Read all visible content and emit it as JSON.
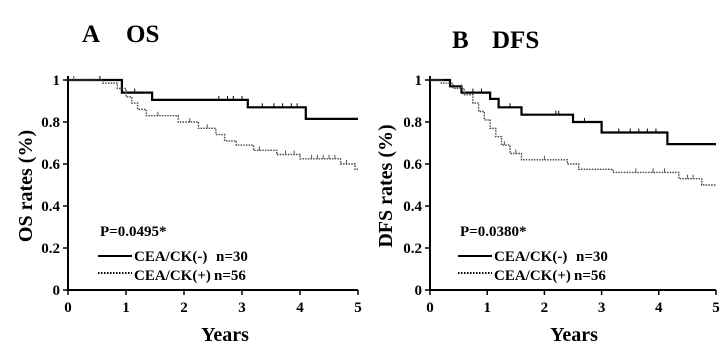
{
  "chart_data": [
    {
      "type": "line",
      "panel_label": "A",
      "title": "OS",
      "xlabel": "Years",
      "ylabel": "OS rates (%)",
      "xlim": [
        0,
        5
      ],
      "ylim": [
        0,
        1
      ],
      "x_ticks": [
        "0",
        "1",
        "2",
        "3",
        "4",
        "5"
      ],
      "y_ticks": [
        "0",
        "0.2",
        "0.4",
        "0.6",
        "0.8",
        "1"
      ],
      "annotation": "P=0.0495*",
      "legend_position": "bottom-left",
      "series": [
        {
          "name": "CEA/CK(-)",
          "n_label": "n=30",
          "style": "solid",
          "points": [
            [
              0,
              1.0
            ],
            [
              0.93,
              1.0
            ],
            [
              0.93,
              0.94
            ],
            [
              1.45,
              0.94
            ],
            [
              1.45,
              0.905
            ],
            [
              3.1,
              0.905
            ],
            [
              3.1,
              0.87
            ],
            [
              4.1,
              0.87
            ],
            [
              4.1,
              0.815
            ],
            [
              5,
              0.815
            ]
          ],
          "censor_x": [
            0.55,
            1.15,
            2.6,
            2.75,
            2.85,
            3.0,
            3.35,
            3.55,
            3.7,
            3.85,
            3.95
          ]
        },
        {
          "name": "CEA/CK(+)",
          "n_label": "n=56",
          "style": "dotted",
          "points": [
            [
              0,
              1.0
            ],
            [
              0.6,
              1.0
            ],
            [
              0.6,
              0.985
            ],
            [
              0.85,
              0.985
            ],
            [
              0.85,
              0.96
            ],
            [
              1.0,
              0.96
            ],
            [
              1.0,
              0.92
            ],
            [
              1.1,
              0.92
            ],
            [
              1.1,
              0.89
            ],
            [
              1.2,
              0.89
            ],
            [
              1.2,
              0.86
            ],
            [
              1.35,
              0.86
            ],
            [
              1.35,
              0.83
            ],
            [
              1.9,
              0.83
            ],
            [
              1.9,
              0.8
            ],
            [
              2.25,
              0.8
            ],
            [
              2.25,
              0.77
            ],
            [
              2.55,
              0.77
            ],
            [
              2.55,
              0.74
            ],
            [
              2.7,
              0.74
            ],
            [
              2.7,
              0.71
            ],
            [
              2.9,
              0.71
            ],
            [
              2.9,
              0.69
            ],
            [
              3.2,
              0.69
            ],
            [
              3.2,
              0.665
            ],
            [
              3.6,
              0.665
            ],
            [
              3.6,
              0.645
            ],
            [
              4.0,
              0.645
            ],
            [
              4.0,
              0.625
            ],
            [
              4.7,
              0.625
            ],
            [
              4.7,
              0.6
            ],
            [
              4.95,
              0.6
            ],
            [
              4.95,
              0.575
            ],
            [
              5,
              0.575
            ]
          ],
          "censor_x": [
            0.1,
            1.55,
            2.1,
            2.4,
            3.3,
            3.75,
            3.9,
            4.2,
            4.3,
            4.4,
            4.5,
            4.6,
            4.8
          ]
        }
      ]
    },
    {
      "type": "line",
      "panel_label": "B",
      "title": "DFS",
      "xlabel": "Years",
      "ylabel": "DFS rates (%)",
      "xlim": [
        0,
        5
      ],
      "ylim": [
        0,
        1
      ],
      "x_ticks": [
        "0",
        "1",
        "2",
        "3",
        "4",
        "5"
      ],
      "y_ticks": [
        "0",
        "0.2",
        "0.4",
        "0.6",
        "0.8",
        "1"
      ],
      "annotation": "P=0.0380*",
      "legend_position": "bottom-left",
      "series": [
        {
          "name": "CEA/CK(-)",
          "n_label": "n=30",
          "style": "solid",
          "points": [
            [
              0,
              1.0
            ],
            [
              0.35,
              1.0
            ],
            [
              0.35,
              0.97
            ],
            [
              0.55,
              0.97
            ],
            [
              0.55,
              0.94
            ],
            [
              1.05,
              0.94
            ],
            [
              1.05,
              0.91
            ],
            [
              1.2,
              0.91
            ],
            [
              1.2,
              0.87
            ],
            [
              1.6,
              0.87
            ],
            [
              1.6,
              0.835
            ],
            [
              2.5,
              0.835
            ],
            [
              2.5,
              0.8
            ],
            [
              3.0,
              0.8
            ],
            [
              3.0,
              0.75
            ],
            [
              4.15,
              0.75
            ],
            [
              4.15,
              0.695
            ],
            [
              5,
              0.695
            ]
          ],
          "censor_x": [
            0.75,
            0.9,
            1.4,
            2.2,
            2.25,
            2.7,
            3.3,
            3.5,
            3.65,
            3.8,
            3.95
          ]
        },
        {
          "name": "CEA/CK(+)",
          "n_label": "n=56",
          "style": "dotted",
          "points": [
            [
              0,
              1.0
            ],
            [
              0.2,
              1.0
            ],
            [
              0.2,
              0.985
            ],
            [
              0.4,
              0.985
            ],
            [
              0.4,
              0.96
            ],
            [
              0.6,
              0.96
            ],
            [
              0.6,
              0.93
            ],
            [
              0.75,
              0.93
            ],
            [
              0.75,
              0.89
            ],
            [
              0.85,
              0.89
            ],
            [
              0.85,
              0.85
            ],
            [
              0.95,
              0.85
            ],
            [
              0.95,
              0.81
            ],
            [
              1.05,
              0.81
            ],
            [
              1.05,
              0.77
            ],
            [
              1.15,
              0.77
            ],
            [
              1.15,
              0.73
            ],
            [
              1.25,
              0.73
            ],
            [
              1.25,
              0.69
            ],
            [
              1.4,
              0.69
            ],
            [
              1.4,
              0.65
            ],
            [
              1.6,
              0.65
            ],
            [
              1.6,
              0.62
            ],
            [
              2.4,
              0.62
            ],
            [
              2.4,
              0.6
            ],
            [
              2.6,
              0.6
            ],
            [
              2.6,
              0.575
            ],
            [
              3.2,
              0.575
            ],
            [
              3.2,
              0.56
            ],
            [
              4.35,
              0.56
            ],
            [
              4.35,
              0.53
            ],
            [
              4.75,
              0.53
            ],
            [
              4.75,
              0.5
            ],
            [
              5,
              0.5
            ]
          ],
          "censor_x": [
            0.55,
            1.3,
            1.5,
            2.0,
            3.6,
            3.9,
            4.1,
            4.5,
            4.6
          ]
        }
      ]
    }
  ]
}
